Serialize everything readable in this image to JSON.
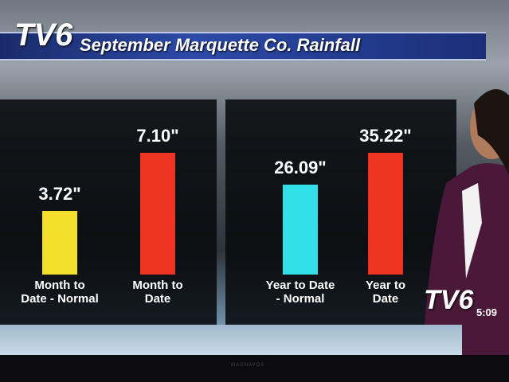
{
  "logo": "TV6",
  "time": "5:09",
  "brand": "MAGNAVOX",
  "title": "September Marquette Co. Rainfall",
  "chart_data": [
    {
      "type": "bar",
      "categories": [
        "Month to\nDate - Normal",
        "Month to\nDate"
      ],
      "values": [
        3.72,
        7.1
      ],
      "value_labels": [
        "3.72\"",
        "7.10\""
      ],
      "colors": [
        "#f3df2c",
        "#ee3322"
      ]
    },
    {
      "type": "bar",
      "categories": [
        "Year to Date\n- Normal",
        "Year to\nDate"
      ],
      "values": [
        26.09,
        35.22
      ],
      "value_labels": [
        "26.09\"",
        "35.22\""
      ],
      "colors": [
        "#33e0ea",
        "#ee3322"
      ]
    }
  ]
}
